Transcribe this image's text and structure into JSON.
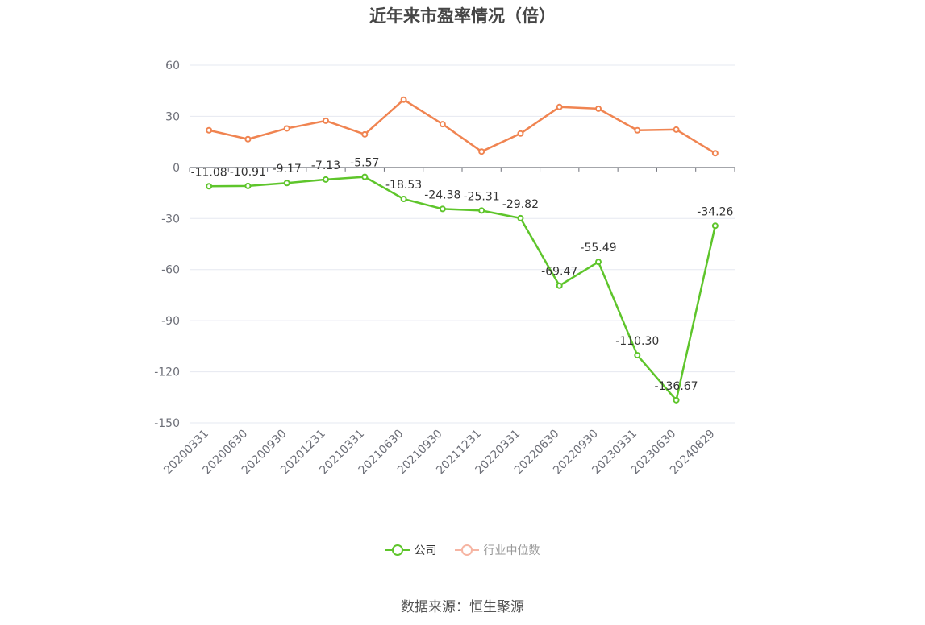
{
  "title": "近年来市盈率情况（倍）",
  "source": "数据来源：恒生聚源",
  "colors": {
    "company": "#5ec52b",
    "industry": "#f08451",
    "industry_legend": "#f6b5a3",
    "grid": "#e6e8f0",
    "axis": "#6e7079"
  },
  "legend": {
    "company": "公司",
    "industry": "行业中位数"
  },
  "chart_data": {
    "type": "line",
    "title": "近年来市盈率情况（倍）",
    "categories": [
      "20200331",
      "20200630",
      "20200930",
      "20201231",
      "20210331",
      "20210630",
      "20210930",
      "20211231",
      "20220331",
      "20220630",
      "20220930",
      "20230331",
      "20230630",
      "20240829"
    ],
    "ylim": [
      -150,
      60
    ],
    "yticks": [
      60,
      30,
      0,
      -30,
      -60,
      -90,
      -120,
      -150
    ],
    "grid": true,
    "legend_position": "bottom",
    "series": [
      {
        "name": "公司",
        "values": [
          -11.08,
          -10.91,
          -9.17,
          -7.13,
          -5.57,
          -18.53,
          -24.38,
          -25.31,
          -29.82,
          -69.47,
          -55.49,
          -110.3,
          -136.67,
          -34.26
        ],
        "labels": [
          "-11.08",
          "-10.91",
          "-9.17",
          "-7.13",
          "-5.57",
          "-18.53",
          "-24.38",
          "-25.31",
          "-29.82",
          "-69.47",
          "-55.49",
          "-110.30",
          "-136.67",
          "-34.26"
        ]
      },
      {
        "name": "行业中位数",
        "values": [
          21.8,
          16.6,
          22.9,
          27.4,
          19.4,
          39.8,
          25.4,
          9.3,
          19.9,
          35.5,
          34.5,
          21.8,
          22.2,
          8.3
        ]
      }
    ]
  }
}
